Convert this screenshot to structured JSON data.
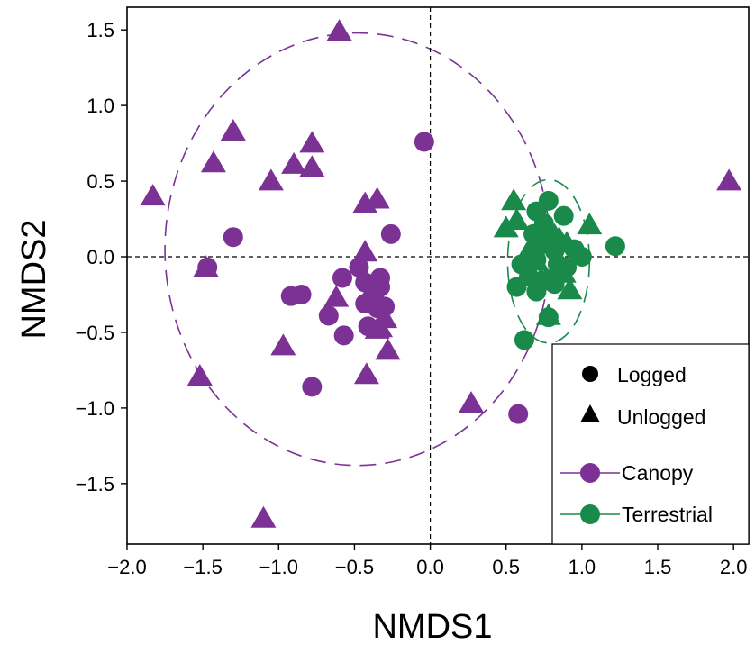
{
  "chart_data": {
    "type": "scatter",
    "title": "",
    "xlabel": "NMDS1",
    "ylabel": "NMDS2",
    "xlim": [
      -2.0,
      2.1
    ],
    "ylim": [
      -1.9,
      1.65
    ],
    "x_ticks": [
      -2.0,
      -1.5,
      -1.0,
      -0.5,
      0.0,
      0.5,
      1.0,
      1.5,
      2.0
    ],
    "x_tick_labels": [
      "−2.0",
      "−1.5",
      "−1.0",
      "−0.5",
      "0.0",
      "0.5",
      "1.0",
      "1.5",
      "2.0"
    ],
    "y_ticks": [
      1.5,
      1.0,
      0.5,
      0.0,
      -0.5,
      -1.0,
      -1.5
    ],
    "y_tick_labels": [
      "1.5",
      "1.0",
      "0.5",
      "0.0",
      "−0.5",
      "−1.0",
      "−1.5"
    ],
    "grid": false,
    "reference_lines": {
      "x": 0,
      "y": 0,
      "style": "dashed"
    },
    "legend_position": "bottom-right",
    "colors": {
      "canopy": "#7B3294",
      "terrestrial": "#1A8A4A"
    },
    "legend": {
      "shapes": [
        {
          "label": "Logged",
          "shape": "circle"
        },
        {
          "label": "Unlogged",
          "shape": "triangle"
        }
      ],
      "groups": [
        {
          "label": "Canopy",
          "color": "#7B3294"
        },
        {
          "label": "Terrestrial",
          "color": "#1A8A4A"
        }
      ]
    },
    "ellipses": [
      {
        "group": "Canopy",
        "cx": -0.48,
        "cy": 0.05,
        "rx": 1.27,
        "ry": 1.43
      },
      {
        "group": "Terrestrial",
        "cx": 0.78,
        "cy": -0.03,
        "rx": 0.27,
        "ry": 0.54
      }
    ],
    "series": [
      {
        "name": "Canopy",
        "shape": "triangle",
        "x": [
          -0.6,
          -1.3,
          -0.78,
          -1.43,
          -0.9,
          -0.78,
          -1.05,
          -1.83,
          -0.43,
          -0.35,
          -0.43,
          -0.4,
          -0.3,
          -0.62,
          -0.35,
          -0.33,
          -0.97,
          -1.52,
          -0.28,
          -0.42,
          -1.1,
          -1.48,
          0.27,
          1.97
        ],
        "y": [
          1.5,
          0.84,
          0.76,
          0.63,
          0.62,
          0.6,
          0.51,
          0.41,
          0.36,
          0.39,
          0.04,
          -0.24,
          -0.4,
          -0.26,
          -0.47,
          -0.46,
          -0.58,
          -0.78,
          -0.61,
          -0.77,
          -1.72,
          -0.06,
          -0.96,
          0.51
        ]
      },
      {
        "name": "Canopy",
        "shape": "circle",
        "x": [
          -0.04,
          -1.3,
          -0.26,
          -1.47,
          -0.58,
          -0.47,
          -0.43,
          -0.33,
          -0.33,
          -0.37,
          -0.43,
          -0.92,
          -0.85,
          -0.3,
          -0.67,
          -0.57,
          -0.41,
          -0.78,
          -0.35,
          0.58
        ],
        "y": [
          0.76,
          0.13,
          0.15,
          -0.07,
          -0.14,
          -0.07,
          -0.17,
          -0.14,
          -0.2,
          -0.27,
          -0.31,
          -0.26,
          -0.25,
          -0.33,
          -0.39,
          -0.52,
          -0.46,
          -0.86,
          -0.34,
          -1.04
        ]
      },
      {
        "name": "Terrestrial",
        "shape": "triangle",
        "x": [
          0.55,
          0.5,
          0.57,
          0.65,
          0.77,
          0.7,
          0.9,
          1.05,
          0.85,
          0.73,
          0.92,
          0.78,
          0.82,
          0.88
        ],
        "y": [
          0.38,
          0.2,
          0.25,
          0.05,
          0.21,
          -0.02,
          0.1,
          0.22,
          0.13,
          -0.14,
          -0.21,
          -0.38,
          0.15,
          -0.1
        ]
      },
      {
        "name": "Terrestrial",
        "shape": "circle",
        "x": [
          0.78,
          0.7,
          0.75,
          0.88,
          0.82,
          0.6,
          0.65,
          0.57,
          0.7,
          0.78,
          0.84,
          0.95,
          1.0,
          1.22,
          0.9,
          0.73,
          0.62,
          0.68,
          0.78,
          0.82,
          0.7,
          0.76
        ],
        "y": [
          0.37,
          0.3,
          0.22,
          0.27,
          0.04,
          -0.05,
          -0.13,
          -0.2,
          -0.23,
          -0.15,
          -0.05,
          0.05,
          0.0,
          0.07,
          -0.07,
          0.08,
          -0.55,
          0.15,
          -0.4,
          -0.18,
          -0.02,
          0.18
        ]
      }
    ]
  }
}
